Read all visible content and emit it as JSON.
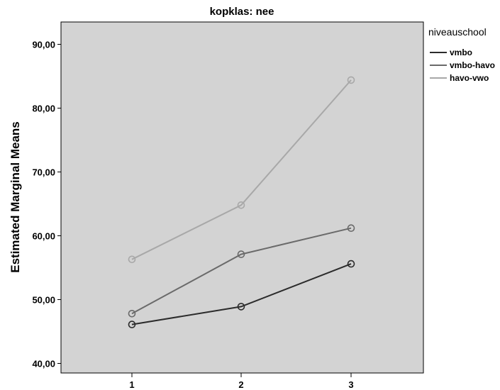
{
  "chart_data": {
    "type": "line",
    "title": "kopklas: nee",
    "xlabel": "",
    "ylabel": "Estimated Marginal Means",
    "categories": [
      "1",
      "2",
      "3"
    ],
    "ylim": [
      38.5,
      93.5
    ],
    "yticks": [
      "40,00",
      "50,00",
      "60,00",
      "70,00",
      "80,00",
      "90,00"
    ],
    "ytick_values": [
      40,
      50,
      60,
      70,
      80,
      90
    ],
    "grid": false,
    "legend": {
      "title": "niveauschool",
      "placement": "right"
    },
    "series": [
      {
        "name": "vmbo",
        "values": [
          46.1,
          48.9,
          55.6
        ],
        "color": "#2b2b2b"
      },
      {
        "name": "vmbo-havo",
        "values": [
          47.8,
          57.1,
          61.2
        ],
        "color": "#6a6a6a"
      },
      {
        "name": "havo-vwo",
        "values": [
          56.3,
          64.8,
          84.4
        ],
        "color": "#a8a8a8"
      }
    ],
    "colors": {
      "plot_background": "#d3d3d3",
      "axis": "#000000"
    }
  }
}
